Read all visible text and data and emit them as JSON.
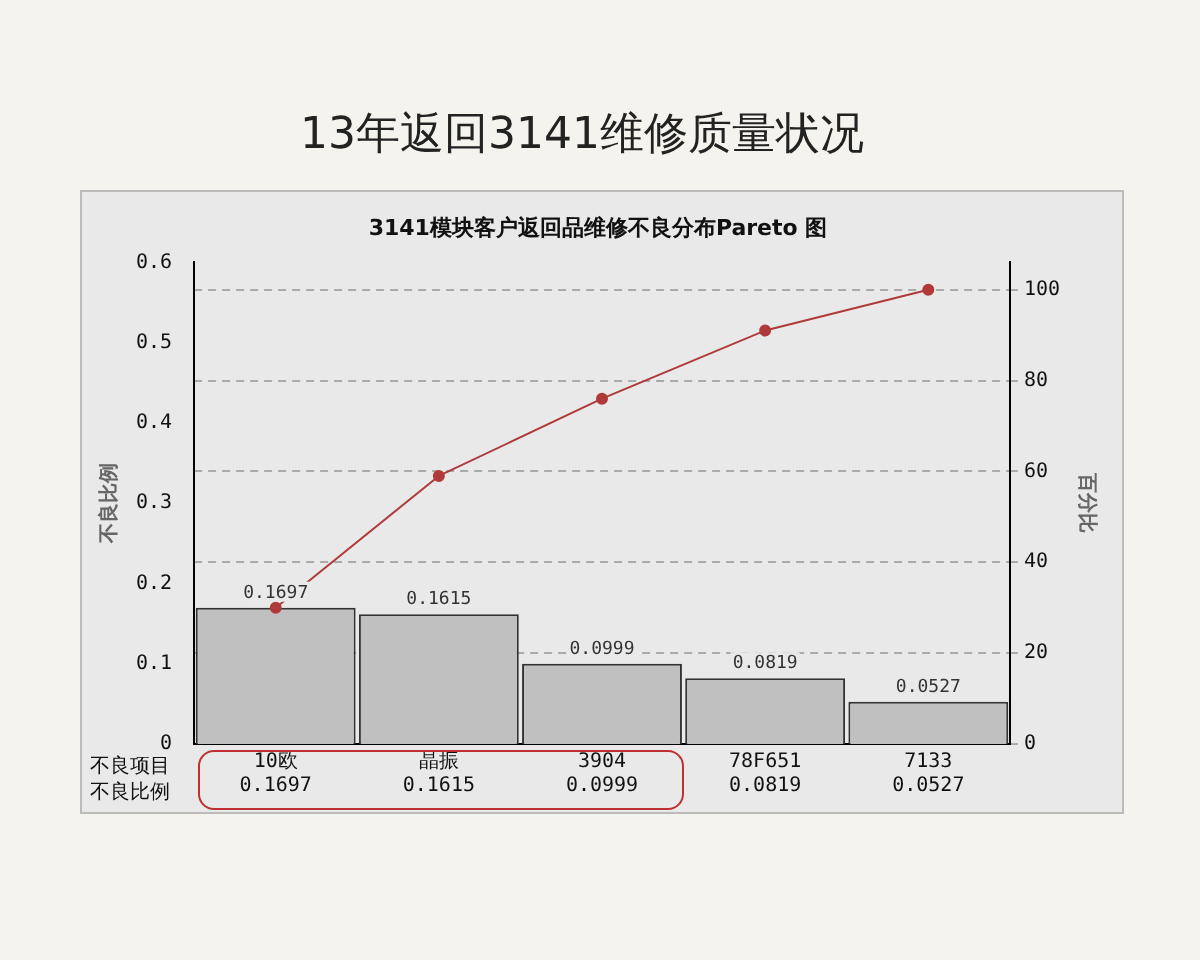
{
  "chart_data": {
    "type": "bar",
    "title": "13年返回3141维修质量状况",
    "subtitle": "3141模块客户返回品维修不良分布Pareto 图",
    "ylabel": "不良比例",
    "y2label": "百分比",
    "categories": [
      "10欧",
      "晶振",
      "3904",
      "78F651",
      "7133"
    ],
    "series": [
      {
        "color": "#c0c0c0",
        "values": [
          0.1697,
          0.1615,
          0.0999,
          0.0819,
          0.0527
        ],
        "value_labels": [
          "0.1697",
          "0.1615",
          "0.0999",
          "0.0819",
          "0.0527"
        ]
      },
      {
        "type": "line",
        "axis": "y2",
        "color": "#b03a3a",
        "values": [
          30,
          59,
          76,
          91,
          100
        ]
      }
    ],
    "ylim": [
      0,
      0.6
    ],
    "yticks": [
      0,
      0.1,
      0.2,
      0.3,
      0.4,
      0.5,
      0.6
    ],
    "y2lim": [
      0,
      106
    ],
    "y2ticks": [
      0,
      20,
      40,
      60,
      80,
      100
    ],
    "grid": "y2",
    "marker": "circle",
    "legend": false,
    "annotations": [
      "不良项目",
      "不良比例"
    ]
  }
}
